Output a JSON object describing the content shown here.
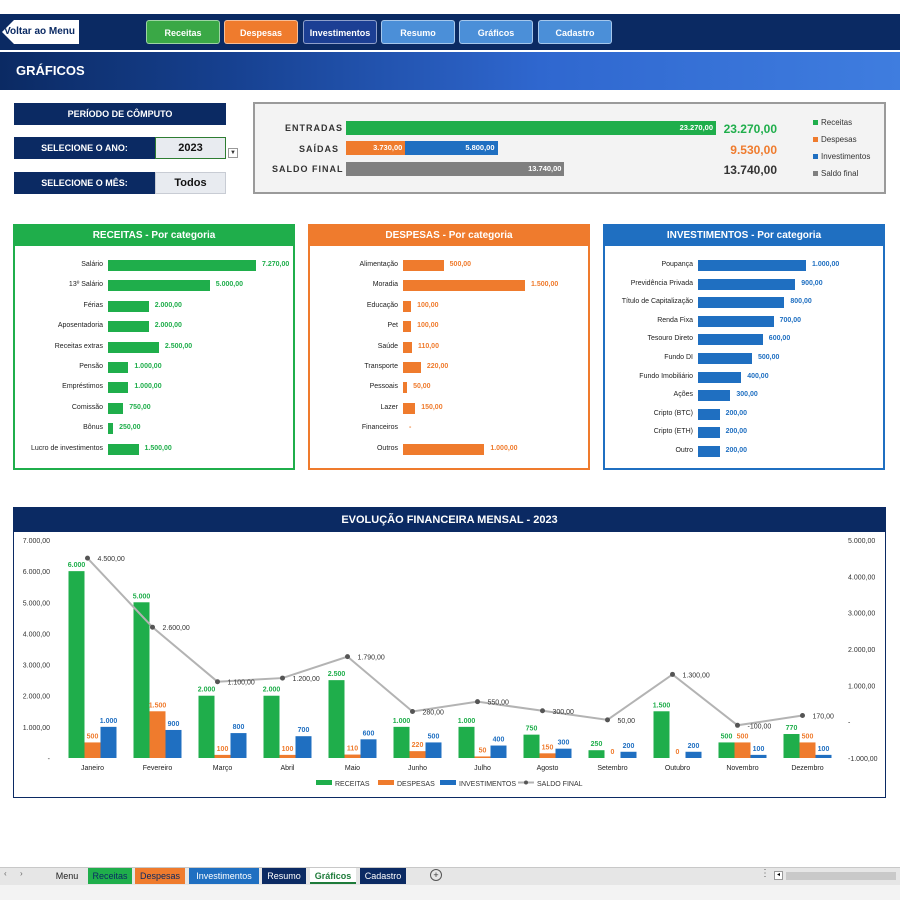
{
  "nav": {
    "back_label": "Voltar ao Menu",
    "buttons": [
      {
        "label": "Receitas",
        "color": "#3aa846"
      },
      {
        "label": "Despesas",
        "color": "#ef7b2d"
      },
      {
        "label": "Investimentos",
        "color": "#1c3f94"
      },
      {
        "label": "Resumo",
        "color": "#4b8fd8"
      },
      {
        "label": "Gráficos",
        "color": "#4b8fd8"
      },
      {
        "label": "Cadastro",
        "color": "#4b8fd8"
      }
    ]
  },
  "page_title": "GRÁFICOS",
  "period": {
    "title": "PERÍODO DE CÔMPUTO",
    "year_label": "SELECIONE O ANO:",
    "year_value": "2023",
    "month_label": "SELECIONE O MÊS:",
    "month_value": "Todos"
  },
  "summary": {
    "entradas_label": "ENTRADAS",
    "saidas_label": "SAÍDAS",
    "saldo_label": "SALDO FINAL",
    "entradas_bar_label": "23.270,00",
    "despesas_bar_label": "3.730,00",
    "investimentos_bar_label": "5.800,00",
    "saldo_bar_label": "13.740,00",
    "entradas_total": "23.270,00",
    "saidas_total": "9.530,00",
    "saldo_total": "13.740,00",
    "entradas_value": 23270,
    "despesas_value": 3730,
    "investimentos_value": 5800,
    "saldo_value": 13740,
    "legend": [
      {
        "label": "Receitas",
        "color": "#1fae4b"
      },
      {
        "label": "Despesas",
        "color": "#ef7b2d"
      },
      {
        "label": "Investimentos",
        "color": "#1f6fc1"
      },
      {
        "label": "Saldo final",
        "color": "#7f7f7f"
      }
    ]
  },
  "receitas": {
    "title": "RECEITAS - Por categoria",
    "color": "#1fae4b",
    "max": 7270,
    "items": [
      {
        "label": "Salário",
        "value": 7270,
        "text": "7.270,00"
      },
      {
        "label": "13º Salário",
        "value": 5000,
        "text": "5.000,00"
      },
      {
        "label": "Férias",
        "value": 2000,
        "text": "2.000,00"
      },
      {
        "label": "Aposentadoria",
        "value": 2000,
        "text": "2.000,00"
      },
      {
        "label": "Receitas extras",
        "value": 2500,
        "text": "2.500,00"
      },
      {
        "label": "Pensão",
        "value": 1000,
        "text": "1.000,00"
      },
      {
        "label": "Empréstimos",
        "value": 1000,
        "text": "1.000,00"
      },
      {
        "label": "Comissão",
        "value": 750,
        "text": "750,00"
      },
      {
        "label": "Bônus",
        "value": 250,
        "text": "250,00"
      },
      {
        "label": "Lucro de investimentos",
        "value": 1500,
        "text": "1.500,00"
      }
    ]
  },
  "despesas": {
    "title": "DESPESAS - Por categoria",
    "color": "#ef7b2d",
    "max": 1500,
    "items": [
      {
        "label": "Alimentação",
        "value": 500,
        "text": "500,00"
      },
      {
        "label": "Moradia",
        "value": 1500,
        "text": "1.500,00"
      },
      {
        "label": "Educação",
        "value": 100,
        "text": "100,00"
      },
      {
        "label": "Pet",
        "value": 100,
        "text": "100,00"
      },
      {
        "label": "Saúde",
        "value": 110,
        "text": "110,00"
      },
      {
        "label": "Transporte",
        "value": 220,
        "text": "220,00"
      },
      {
        "label": "Pessoais",
        "value": 50,
        "text": "50,00"
      },
      {
        "label": "Lazer",
        "value": 150,
        "text": "150,00"
      },
      {
        "label": "Financeiros",
        "value": 0,
        "text": "-"
      },
      {
        "label": "Outros",
        "value": 1000,
        "text": "1.000,00"
      }
    ]
  },
  "investimentos": {
    "title": "INVESTIMENTOS - Por categoria",
    "color": "#1f6fc1",
    "max": 1000,
    "items": [
      {
        "label": "Poupança",
        "value": 1000,
        "text": "1.000,00"
      },
      {
        "label": "Previdência Privada",
        "value": 900,
        "text": "900,00"
      },
      {
        "label": "Título de Capitalização",
        "value": 800,
        "text": "800,00"
      },
      {
        "label": "Renda Fixa",
        "value": 700,
        "text": "700,00"
      },
      {
        "label": "Tesouro Direto",
        "value": 600,
        "text": "600,00"
      },
      {
        "label": "Fundo DI",
        "value": 500,
        "text": "500,00"
      },
      {
        "label": "Fundo Imobiliário",
        "value": 400,
        "text": "400,00"
      },
      {
        "label": "Ações",
        "value": 300,
        "text": "300,00"
      },
      {
        "label": "Cripto (BTC)",
        "value": 200,
        "text": "200,00"
      },
      {
        "label": "Cripto (ETH)",
        "value": 200,
        "text": "200,00"
      },
      {
        "label": "Outro",
        "value": 200,
        "text": "200,00"
      }
    ]
  },
  "monthly": {
    "title": "EVOLUÇÃO FINANCEIRA MENSAL - 2023",
    "months": [
      "Janeiro",
      "Fevereiro",
      "Março",
      "Abril",
      "Maio",
      "Junho",
      "Julho",
      "Agosto",
      "Setembro",
      "Outubro",
      "Novembro",
      "Dezembro"
    ],
    "receitas": [
      6000,
      5000,
      2000,
      2000,
      2500,
      1000,
      1000,
      750,
      250,
      1500,
      500,
      770
    ],
    "despesas": [
      500,
      1500,
      100,
      100,
      110,
      220,
      50,
      150,
      0,
      0,
      500,
      500
    ],
    "investimentos": [
      1000,
      900,
      800,
      700,
      600,
      500,
      400,
      300,
      200,
      200,
      100,
      100
    ],
    "saldo": [
      4500,
      2600,
      1100,
      1200,
      1790,
      280,
      550,
      300,
      50,
      1300,
      -100,
      170
    ],
    "receitas_labels": [
      "6.000",
      "5.000",
      "2.000",
      "2.000",
      "2.500",
      "1.000",
      "1.000",
      "750",
      "250",
      "1.500",
      "500",
      "770"
    ],
    "despesas_labels": [
      "500",
      "1.500",
      "100",
      "100",
      "110",
      "220",
      "50",
      "150",
      "0",
      "0",
      "500",
      "500"
    ],
    "investimentos_labels": [
      "1.000",
      "900",
      "800",
      "700",
      "600",
      "500",
      "400",
      "300",
      "200",
      "200",
      "100",
      "100"
    ],
    "saldo_labels": [
      "4.500,00",
      "2.600,00",
      "1.100,00",
      "1.200,00",
      "1.790,00",
      "280,00",
      "550,00",
      "300,00",
      "50,00",
      "1.300,00",
      "-100,00",
      "170,00"
    ],
    "left_ticks": [
      "7.000,00",
      "6.000,00",
      "5.000,00",
      "4.000,00",
      "3.000,00",
      "2.000,00",
      "1.000,00",
      "-"
    ],
    "right_ticks": [
      "5.000,00",
      "4.000,00",
      "3.000,00",
      "2.000,00",
      "1.000,00",
      "-",
      "-1.000,00"
    ],
    "left_range": [
      0,
      7000
    ],
    "right_range": [
      -1000,
      5000
    ],
    "legend": [
      "RECEITAS",
      "DESPESAS",
      "INVESTIMENTOS",
      "SALDO FINAL"
    ],
    "colors": {
      "receitas": "#1fae4b",
      "despesas": "#ef7b2d",
      "investimentos": "#1f6fc1",
      "saldo": "#b3b3b3"
    }
  },
  "sheet_tabs": [
    {
      "label": "Menu",
      "bg": "#e6e6e6",
      "fg": "#222222"
    },
    {
      "label": "Receitas",
      "bg": "#1fae4b",
      "fg": "#0b2a63"
    },
    {
      "label": "Despesas",
      "bg": "#ef7b2d",
      "fg": "#0b2a63"
    },
    {
      "label": "Investimentos",
      "bg": "#1f6fc1",
      "fg": "#ffffff"
    },
    {
      "label": "Resumo",
      "bg": "#0b2a63",
      "fg": "#ffffff"
    },
    {
      "label": "Gráficos",
      "bg": "#ffffff",
      "fg": "#1e7b3a"
    },
    {
      "label": "Cadastro",
      "bg": "#0b2a63",
      "fg": "#ffffff"
    }
  ]
}
